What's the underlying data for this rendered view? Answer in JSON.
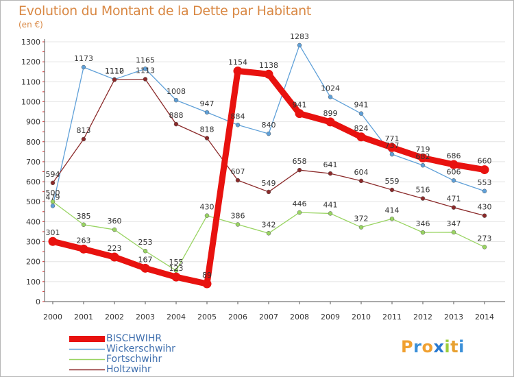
{
  "header": {
    "title": "Evolution du Montant de la Dette par Habitant",
    "subtitle": "(en €)"
  },
  "logo": {
    "letters": [
      "P",
      "r",
      "o",
      "x",
      "i",
      "t",
      "i"
    ],
    "colors": [
      "#f0a030",
      "#3a8fd8",
      "#f0a030",
      "#2a7ad0",
      "#9ccd3c",
      "#e8a030",
      "#3a8fd8"
    ]
  },
  "chart_data": {
    "type": "line",
    "title": "Evolution du Montant de la Dette par Habitant",
    "subtitle": "(en €)",
    "xlabel": "",
    "ylabel": "",
    "x": [
      "2000",
      "2001",
      "2002",
      "2003",
      "2004",
      "2005",
      "2006",
      "2007",
      "2008",
      "2009",
      "2010",
      "2011",
      "2012",
      "2013",
      "2014"
    ],
    "ylim": [
      0,
      1300
    ],
    "yticks": [
      0,
      100,
      200,
      300,
      400,
      500,
      600,
      700,
      800,
      900,
      1000,
      1100,
      1200,
      1300
    ],
    "grid": "horizontal",
    "legend_position": "bottom-left",
    "series": [
      {
        "name": "Wickerschwihr",
        "color": "#5fa0d8",
        "values": [
          479,
          1173,
          1112,
          1165,
          1008,
          947,
          884,
          840,
          1283,
          1024,
          941,
          737,
          682,
          606,
          553
        ],
        "labels": [
          "479",
          "1173",
          "1112",
          "1165",
          "1008",
          "947",
          "884",
          "840",
          "1283",
          "1024",
          "941",
          "737",
          "682",
          "606",
          "553"
        ]
      },
      {
        "name": "Fortschwihr",
        "color": "#99d462",
        "values": [
          500,
          385,
          360,
          253,
          155,
          430,
          386,
          342,
          446,
          441,
          372,
          414,
          346,
          347,
          273
        ],
        "labels": [
          "500",
          "385",
          "360",
          "253",
          "155",
          "430",
          "386",
          "342",
          "446",
          "441",
          "372",
          "414",
          "346",
          "347",
          "273"
        ]
      },
      {
        "name": "Holtzwihr",
        "color": "#8b2a2a",
        "values": [
          594,
          813,
          1110,
          1113,
          888,
          818,
          607,
          549,
          658,
          641,
          604,
          559,
          516,
          471,
          430
        ],
        "labels": [
          "594",
          "813",
          "1110",
          "1113",
          "888",
          "818",
          "607",
          "549",
          "658",
          "641",
          "604",
          "559",
          "516",
          "471",
          "430"
        ]
      },
      {
        "name": "BISCHWIHR",
        "color": "#e8120f",
        "values": [
          301,
          263,
          223,
          167,
          123,
          89,
          1154,
          1138,
          941,
          899,
          824,
          771,
          719,
          686,
          660
        ],
        "labels": [
          "301",
          "263",
          "223",
          "167",
          "123",
          "89",
          "1154",
          "1138",
          "941",
          "899",
          "824",
          "771",
          "719",
          "686",
          "660"
        ],
        "emphasis": true
      }
    ],
    "legend": [
      "BISCHWIHR",
      "Wickerschwihr",
      "Fortschwihr",
      "Holtzwihr"
    ]
  }
}
